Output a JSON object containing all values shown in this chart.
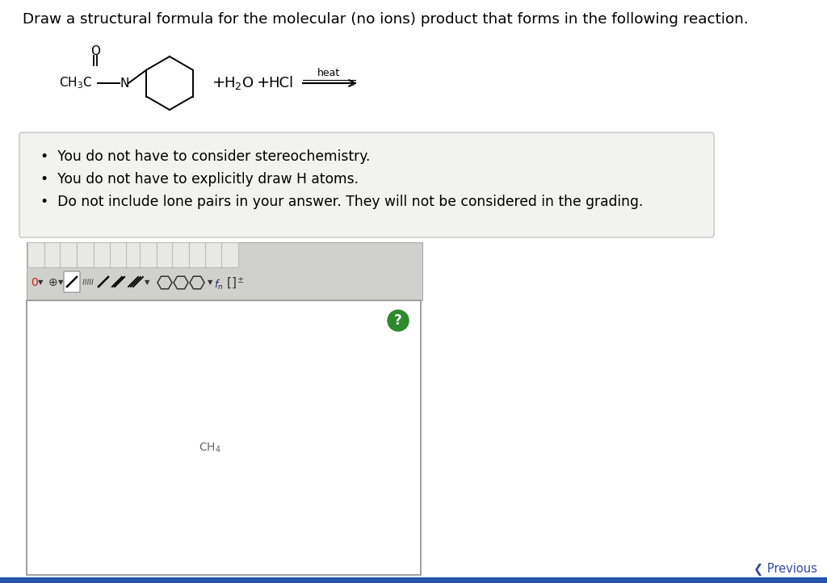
{
  "title": "Draw a structural formula for the molecular (no ions) product that forms in the following reaction.",
  "bg_color": "#ffffff",
  "bullet_box_color": "#f2f2ee",
  "bullet_box_border": "#cccccc",
  "bullets": [
    "You do not have to consider stereochemistry.",
    "You do not have to explicitly draw H atoms.",
    "Do not include lone pairs in your answer. They will not be considered in the grading."
  ],
  "heat_label": "heat",
  "answer_box_border": "#999999",
  "toolbar_bg": "#d0d0cc",
  "toolbar_row1_bg": "#e0e0dc",
  "green_circle_color": "#2d8a2d",
  "previous_color": "#3344aa",
  "bottom_bar_color": "#2255aa"
}
